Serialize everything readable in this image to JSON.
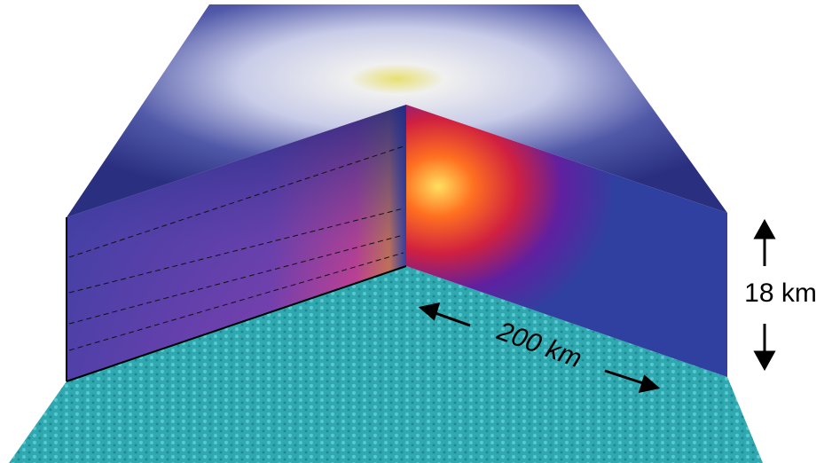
{
  "labels": {
    "height": "18 km",
    "width": "200 km"
  }
}
